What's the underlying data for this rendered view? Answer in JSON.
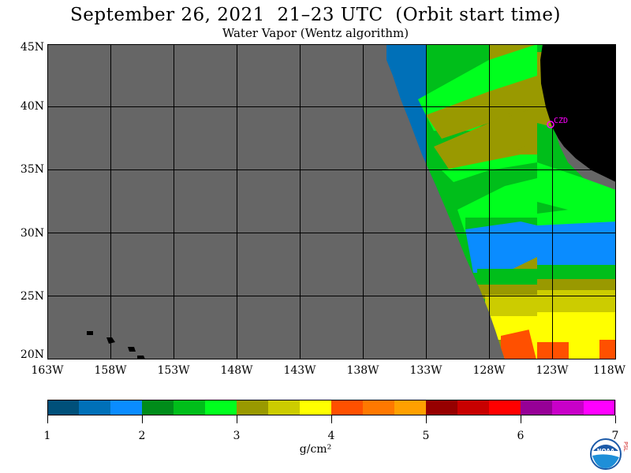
{
  "title": "September 26, 2021  21–23 UTC  (Orbit start time)",
  "subtitle": "Water Vapor (Wentz algorithm)",
  "map": {
    "lat_labels": [
      "45N",
      "40N",
      "35N",
      "30N",
      "25N",
      "20N"
    ],
    "lon_labels": [
      "163W",
      "158W",
      "153W",
      "148W",
      "143W",
      "138W",
      "133W",
      "128W",
      "123W",
      "118W"
    ],
    "station_label": "CZD",
    "colors": {
      "no_data": "#666666",
      "land": "#000000",
      "grid": "#000000",
      "station": "#ff00ff"
    }
  },
  "colorbar": {
    "ticks": [
      "1",
      "2",
      "3",
      "4",
      "5",
      "6",
      "7"
    ],
    "unit": "g/cm²",
    "colors": [
      "#00507a",
      "#0070b8",
      "#0a8cff",
      "#008c1a",
      "#00be1a",
      "#00ff1e",
      "#999900",
      "#cccc00",
      "#ffff00",
      "#ff5000",
      "#ff7800",
      "#ffa000",
      "#960000",
      "#c80000",
      "#ff0000",
      "#960096",
      "#c800c8",
      "#ff00ff"
    ]
  },
  "logo": {
    "noaa_text": "NOAA",
    "psl_text": "PSL"
  }
}
